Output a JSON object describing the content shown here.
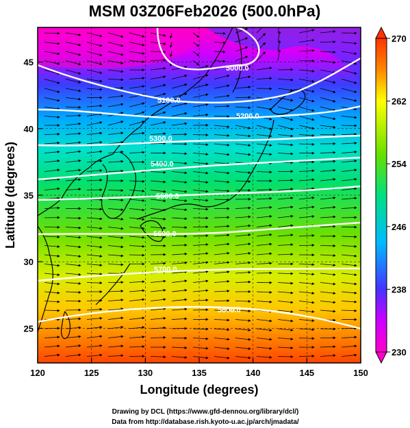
{
  "title": "MSM 03Z06Feb2026 (500.0hPa)",
  "x_axis": {
    "label": "Longitude (degrees)",
    "ticks": [
      "120",
      "125",
      "130",
      "135",
      "140",
      "145",
      "150"
    ],
    "range": [
      120,
      150
    ]
  },
  "y_axis": {
    "label": "Latitude  (degrees)",
    "ticks": [
      "25",
      "30",
      "35",
      "40",
      "45"
    ],
    "range": [
      22.4,
      47.6
    ]
  },
  "colorbar": {
    "ticks": [
      "230",
      "238",
      "246",
      "254",
      "262",
      "270"
    ],
    "range": [
      230,
      270
    ],
    "colors": [
      "#ff00cc",
      "#cc00ff",
      "#4433ff",
      "#00bbff",
      "#00e080",
      "#66e000",
      "#ffff00",
      "#ff8800",
      "#ff3300"
    ]
  },
  "contours": {
    "color": "#ffffff",
    "labels": [
      "5000.0",
      "5100.0",
      "5200.0",
      "5300.0",
      "5400.0",
      "5500.0",
      "5600.0",
      "5700.0",
      "5800.0"
    ]
  },
  "credits": {
    "line1": "Drawing by DCL (https://www.gfd-dennou.org/library/dcl/)",
    "line2": "Data from http://database.rish.kyoto-u.ac.jp/arch/jmadata/"
  }
}
